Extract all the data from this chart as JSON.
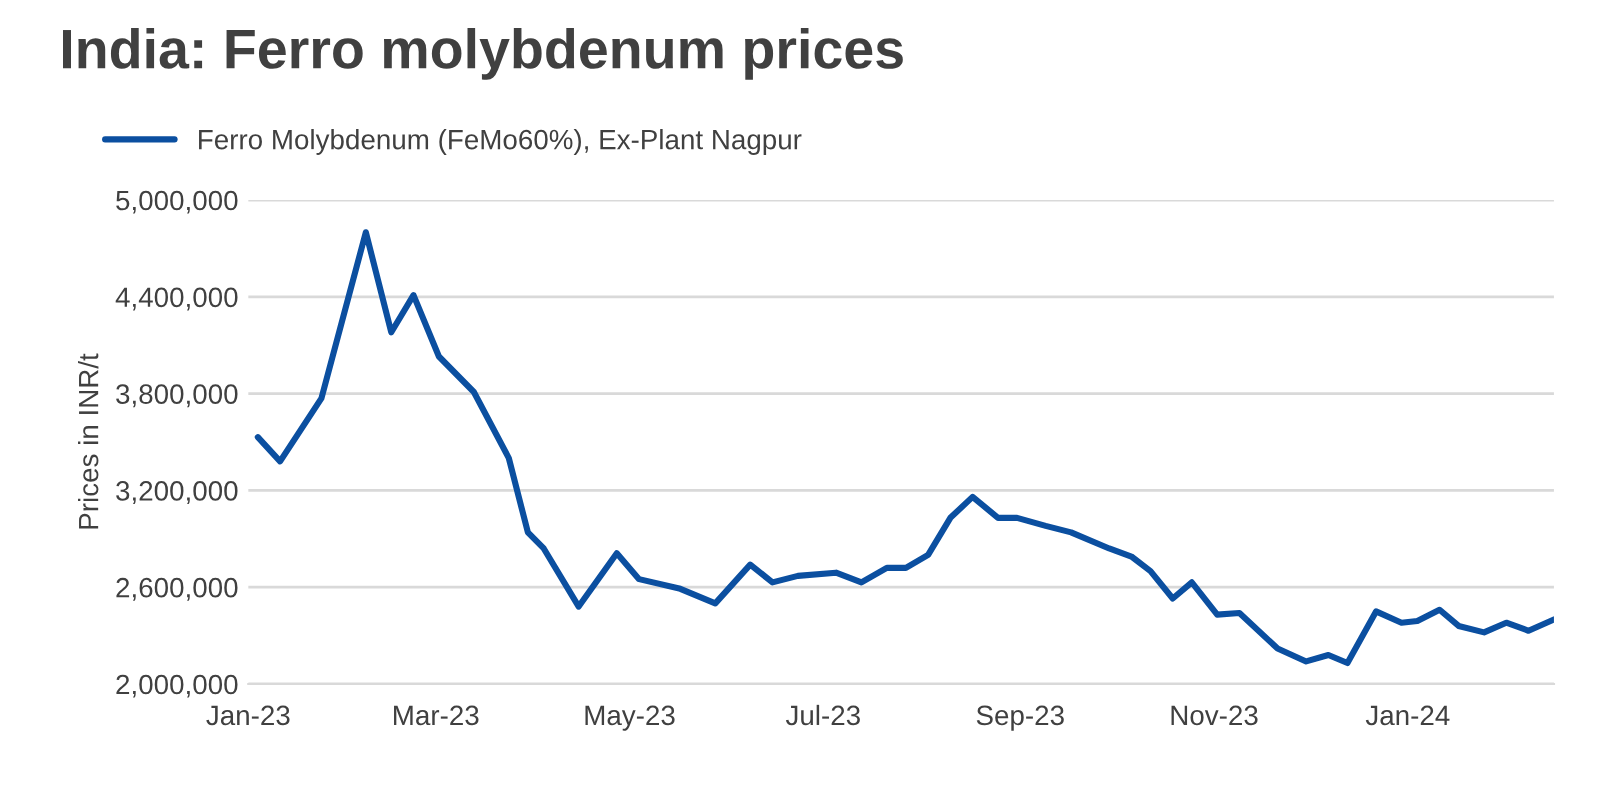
{
  "chart_data": {
    "type": "line",
    "title": "India: Ferro molybdenum prices",
    "ylabel": "Prices in INR/t",
    "x": [
      "2023-01-04",
      "2023-01-11",
      "2023-01-24",
      "2023-02-07",
      "2023-02-15",
      "2023-02-22",
      "2023-03-02",
      "2023-03-13",
      "2023-03-24",
      "2023-03-30",
      "2023-04-04",
      "2023-04-15",
      "2023-04-27",
      "2023-05-04",
      "2023-05-17",
      "2023-05-28",
      "2023-06-08",
      "2023-06-15",
      "2023-06-23",
      "2023-07-05",
      "2023-07-13",
      "2023-07-21",
      "2023-07-27",
      "2023-08-03",
      "2023-08-10",
      "2023-08-17",
      "2023-08-25",
      "2023-08-31",
      "2023-09-09",
      "2023-09-17",
      "2023-09-29",
      "2023-10-06",
      "2023-10-12",
      "2023-10-19",
      "2023-10-25",
      "2023-11-02",
      "2023-11-09",
      "2023-11-21",
      "2023-11-30",
      "2023-12-07",
      "2023-12-13",
      "2023-12-22",
      "2023-12-30",
      "2024-01-04",
      "2024-01-11",
      "2024-01-17",
      "2024-01-25",
      "2024-02-01",
      "2024-02-08",
      "2024-02-16"
    ],
    "series": [
      {
        "name": "Ferro Molybdenum (FeMo60%), Ex-Plant Nagpur",
        "color": "#0b4fa0",
        "values": [
          3530000,
          3380000,
          3770000,
          4800000,
          4180000,
          4410000,
          4030000,
          3810000,
          3400000,
          2940000,
          2840000,
          2480000,
          2810000,
          2650000,
          2590000,
          2500000,
          2740000,
          2630000,
          2670000,
          2690000,
          2630000,
          2720000,
          2720000,
          2800000,
          3030000,
          3160000,
          3030000,
          3030000,
          2980000,
          2940000,
          2840000,
          2790000,
          2700000,
          2530000,
          2630000,
          2430000,
          2440000,
          2220000,
          2140000,
          2180000,
          2130000,
          2450000,
          2380000,
          2390000,
          2460000,
          2360000,
          2320000,
          2380000,
          2330000,
          2400000
        ]
      }
    ],
    "xlim": [
      "2023-01-01",
      "2024-02-16"
    ],
    "xticks": [
      {
        "value": "2023-01-01",
        "label": "Jan-23"
      },
      {
        "value": "2023-03-01",
        "label": "Mar-23"
      },
      {
        "value": "2023-05-01",
        "label": "May-23"
      },
      {
        "value": "2023-07-01",
        "label": "Jul-23"
      },
      {
        "value": "2023-09-01",
        "label": "Sep-23"
      },
      {
        "value": "2023-11-01",
        "label": "Nov-23"
      },
      {
        "value": "2024-01-01",
        "label": "Jan-24"
      }
    ],
    "ylim": [
      2000000,
      5000000
    ],
    "yticks": [
      {
        "value": 2000000,
        "label": "2,000,000"
      },
      {
        "value": 2600000,
        "label": "2,600,000"
      },
      {
        "value": 3200000,
        "label": "3,200,000"
      },
      {
        "value": 3800000,
        "label": "3,800,000"
      },
      {
        "value": 4400000,
        "label": "4,400,000"
      },
      {
        "value": 5000000,
        "label": "5,000,000"
      }
    ],
    "grid": "y",
    "legend": "top left",
    "line_style": "solid",
    "marker": "none"
  }
}
